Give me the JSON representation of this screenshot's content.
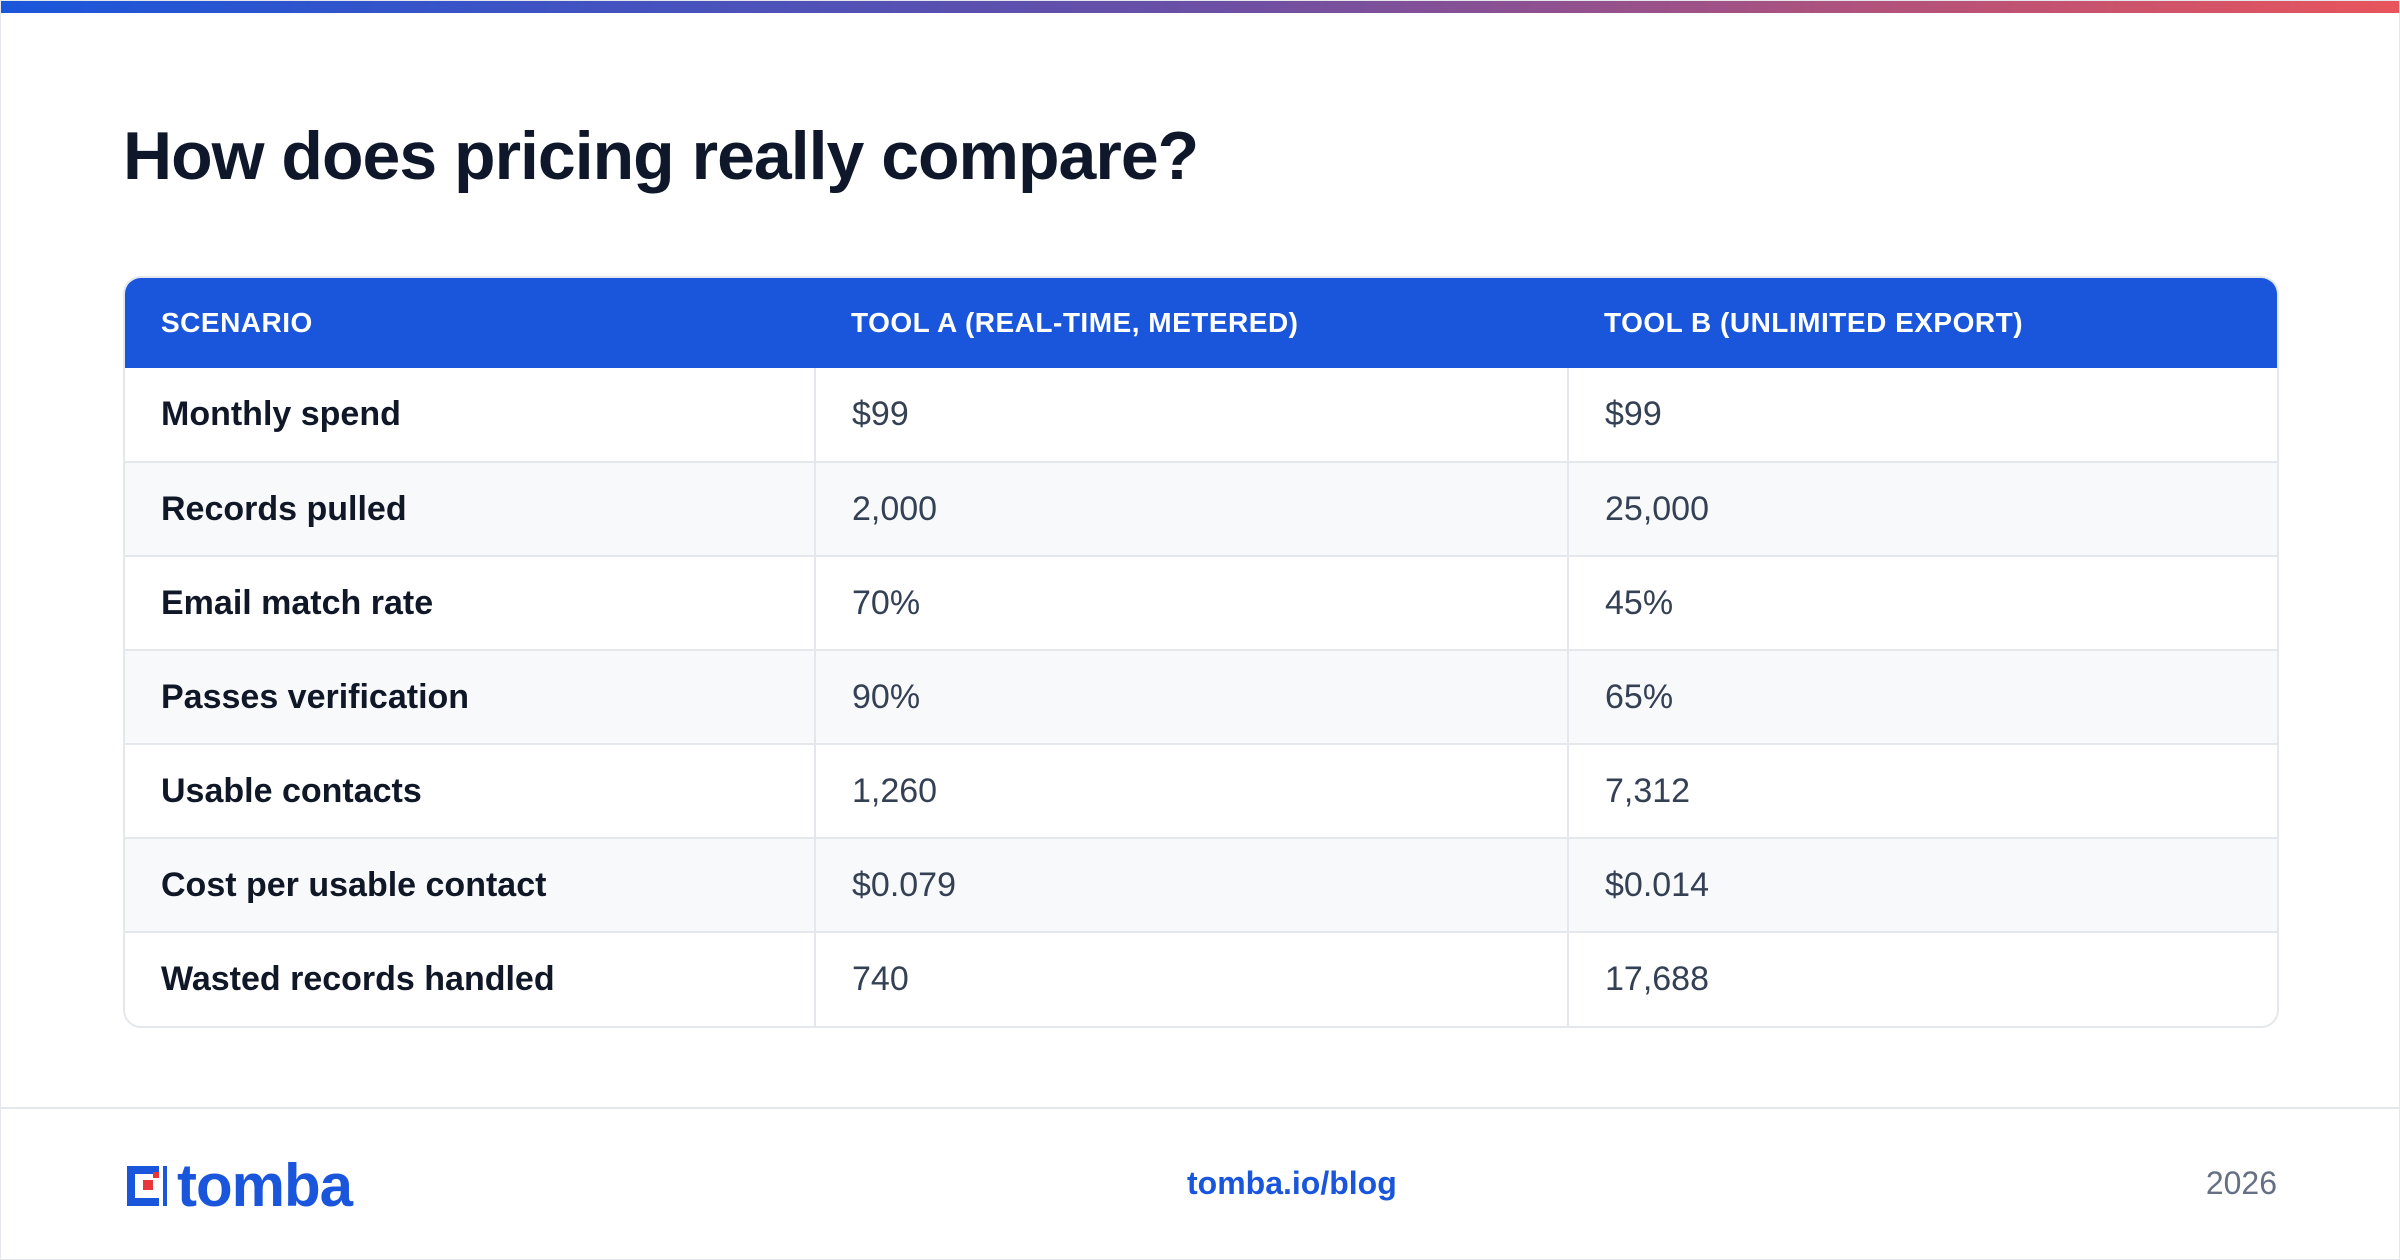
{
  "title": "How does pricing really compare?",
  "table": {
    "headers": [
      "SCENARIO",
      "TOOL A (REAL-TIME, METERED)",
      "TOOL B (UNLIMITED EXPORT)"
    ],
    "rows": [
      [
        "Monthly spend",
        "$99",
        "$99"
      ],
      [
        "Records pulled",
        "2,000",
        "25,000"
      ],
      [
        "Email match rate",
        "70%",
        "45%"
      ],
      [
        "Passes verification",
        "90%",
        "65%"
      ],
      [
        "Usable contacts",
        "1,260",
        "7,312"
      ],
      [
        "Cost per usable contact",
        "$0.079",
        "$0.014"
      ],
      [
        "Wasted records handled",
        "740",
        "17,688"
      ]
    ]
  },
  "footer": {
    "logo_text": "tomba",
    "url": "tomba.io/blog",
    "year": "2026"
  },
  "colors": {
    "accent": "#1a56db",
    "gradient_start": "#1a56db",
    "gradient_end": "#e8545b",
    "logo_red": "#e8343b"
  }
}
